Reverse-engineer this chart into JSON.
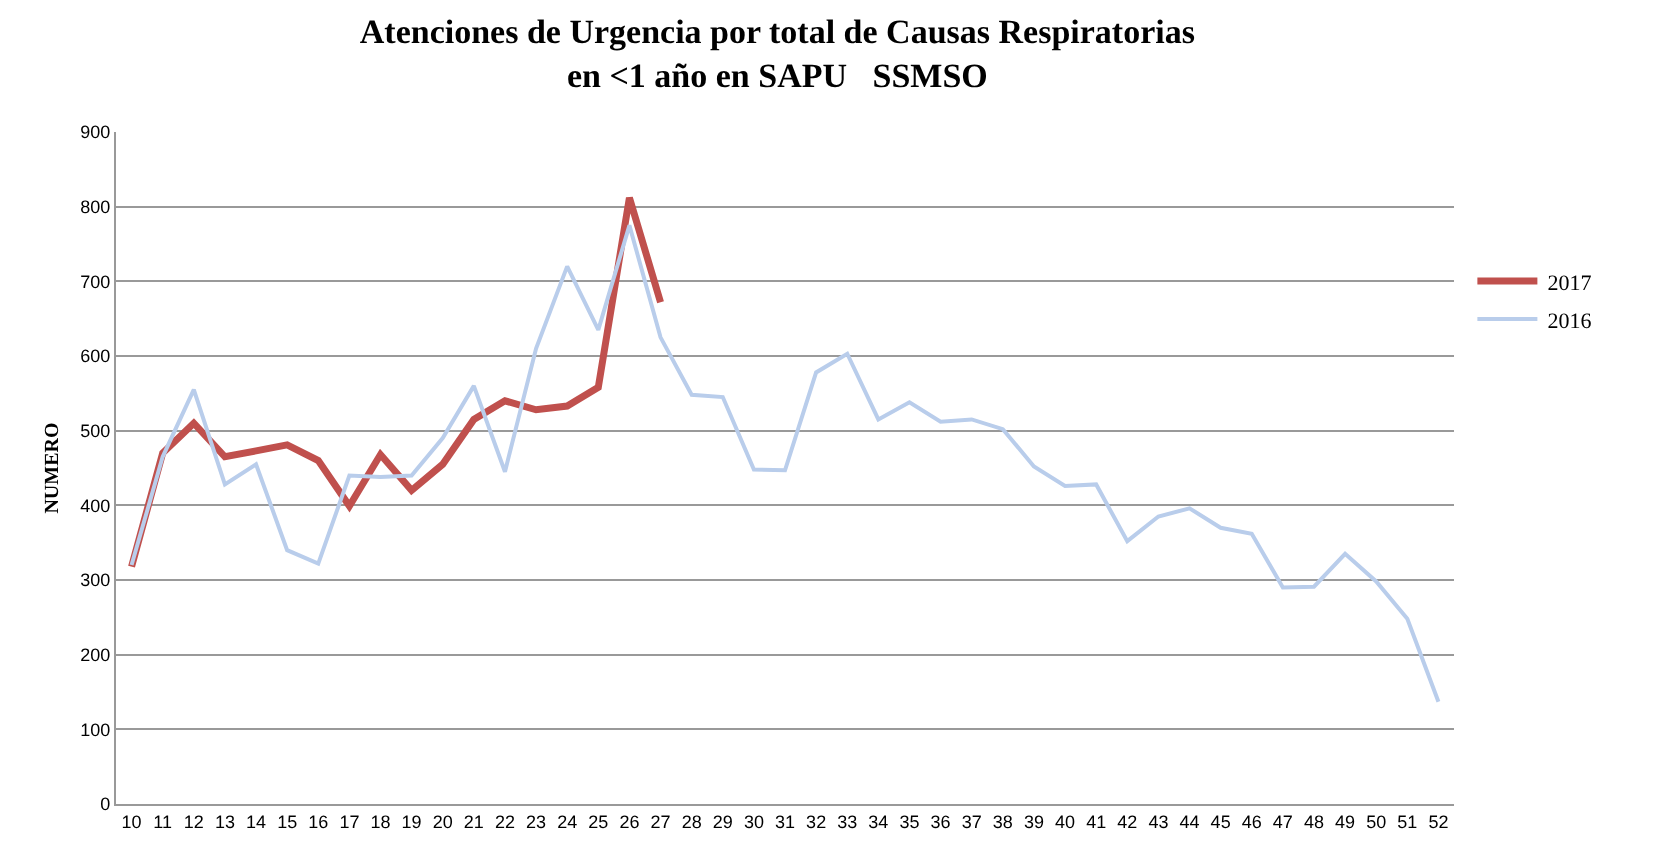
{
  "chart_data": {
    "type": "line",
    "title": "Atenciones de Urgencia por total de Causas Respiratorias\nen <1 año en SAPU   SSMSO",
    "ylabel": "NUMERO",
    "categories": [
      "10",
      "11",
      "12",
      "13",
      "14",
      "15",
      "16",
      "17",
      "18",
      "19",
      "20",
      "21",
      "22",
      "23",
      "24",
      "25",
      "26",
      "27",
      "28",
      "29",
      "30",
      "31",
      "32",
      "33",
      "34",
      "35",
      "36",
      "37",
      "38",
      "39",
      "40",
      "41",
      "42",
      "43",
      "44",
      "45",
      "46",
      "47",
      "48",
      "49",
      "50",
      "51",
      "52"
    ],
    "series": [
      {
        "name": "2017",
        "color": "#c0504d",
        "values": [
          318,
          470,
          510,
          465,
          473,
          481,
          460,
          399,
          468,
          420,
          455,
          515,
          540,
          528,
          533,
          558,
          812,
          672,
          null,
          null,
          null,
          null,
          null,
          null,
          null,
          null,
          null,
          null,
          null,
          null,
          null,
          null,
          null,
          null,
          null,
          null,
          null,
          null,
          null,
          null,
          null,
          null,
          null
        ]
      },
      {
        "name": "2016",
        "color": "#b9cdeb",
        "values": [
          320,
          465,
          555,
          428,
          455,
          340,
          322,
          440,
          438,
          440,
          490,
          560,
          445,
          610,
          720,
          635,
          775,
          625,
          548,
          545,
          448,
          447,
          578,
          603,
          515,
          538,
          512,
          515,
          502,
          452,
          426,
          428,
          352,
          385,
          396,
          370,
          362,
          290,
          291,
          335,
          298,
          248,
          137
        ]
      }
    ],
    "ylim": [
      0,
      900
    ],
    "yticks": [
      0,
      100,
      200,
      300,
      400,
      500,
      600,
      700,
      800,
      900
    ],
    "grid": "y",
    "legend": "right",
    "marker": "none"
  }
}
